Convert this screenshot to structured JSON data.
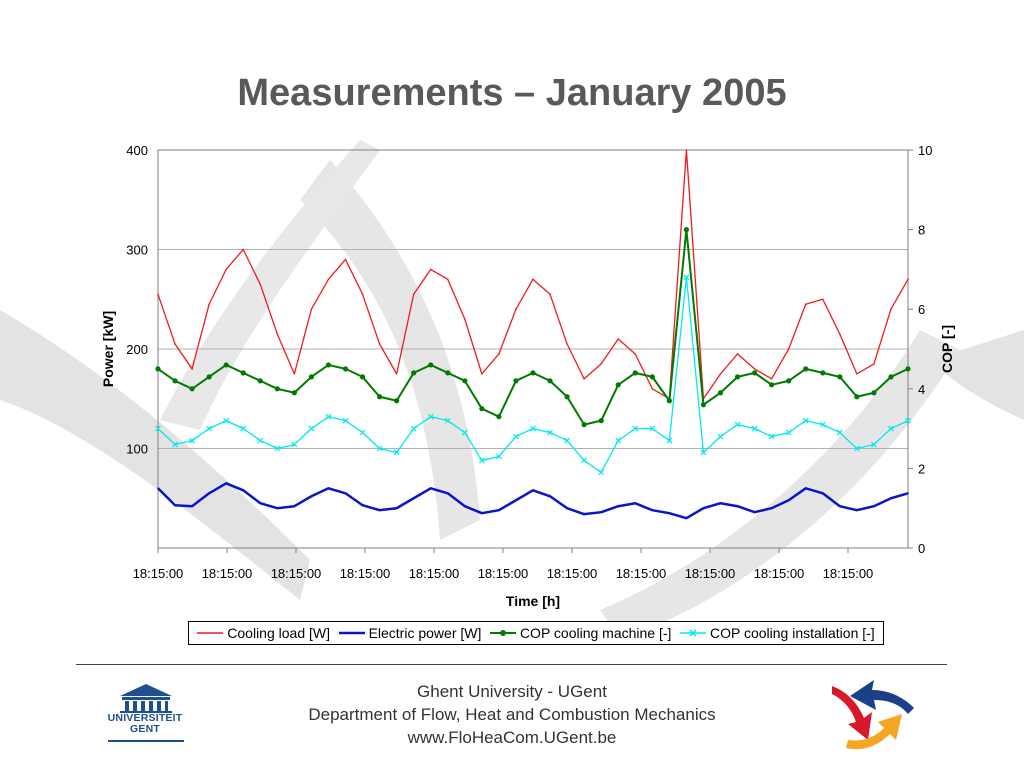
{
  "slide": {
    "title": "Measurements – January 2005",
    "footer": {
      "line1": "Ghent University - UGent",
      "line2": "Department of Flow, Heat and Combustion Mechanics",
      "line3": "www.FloHeaCom.UGent.be"
    },
    "logo_left_text": [
      "UNIVERSITEIT",
      "GENT"
    ]
  },
  "chart_data": {
    "type": "line",
    "xlabel": "Time [h]",
    "ylabel": "Power [kW]",
    "y2label": "COP [-]",
    "ylim": [
      0,
      400
    ],
    "y2lim": [
      0,
      10
    ],
    "yticks": [
      100,
      200,
      300,
      400
    ],
    "y2ticks": [
      0,
      2,
      4,
      6,
      8,
      10
    ],
    "xtick_labels": [
      "18:15:00",
      "18:15:00",
      "18:15:00",
      "18:15:00",
      "18:15:00",
      "18:15:00",
      "18:15:00",
      "18:15:00",
      "18:15:00",
      "18:15:00",
      "18:15:00"
    ],
    "x": [
      0,
      0.25,
      0.5,
      0.75,
      1,
      1.25,
      1.5,
      1.75,
      2,
      2.25,
      2.5,
      2.75,
      3,
      3.25,
      3.5,
      3.75,
      4,
      4.25,
      4.5,
      4.75,
      5,
      5.25,
      5.5,
      5.75,
      6,
      6.25,
      6.5,
      6.75,
      7,
      7.25,
      7.5,
      7.75,
      8,
      8.25,
      8.5,
      8.75,
      9,
      9.25,
      9.5,
      9.75,
      10,
      10.25,
      10.5,
      10.75,
      11
    ],
    "series": [
      {
        "name": "Cooling load [W]",
        "axis": "left",
        "color": "#ee1c1c",
        "marker": "none",
        "values": [
          255,
          205,
          180,
          245,
          280,
          300,
          265,
          215,
          175,
          240,
          270,
          290,
          255,
          205,
          175,
          255,
          280,
          270,
          230,
          175,
          195,
          240,
          270,
          255,
          205,
          170,
          185,
          210,
          195,
          160,
          150,
          400,
          150,
          175,
          195,
          180,
          170,
          200,
          245,
          250,
          215,
          175,
          185,
          240,
          270
        ]
      },
      {
        "name": "Electric power [W]",
        "axis": "left",
        "color": "#0a14c8",
        "marker": "none",
        "values": [
          60,
          43,
          42,
          55,
          65,
          58,
          45,
          40,
          42,
          52,
          60,
          55,
          43,
          38,
          40,
          50,
          60,
          55,
          42,
          35,
          38,
          48,
          58,
          52,
          40,
          34,
          36,
          42,
          45,
          38,
          35,
          30,
          40,
          45,
          42,
          36,
          40,
          48,
          60,
          55,
          42,
          38,
          42,
          50,
          55
        ]
      },
      {
        "name": "COP cooling machine [-]",
        "axis": "right",
        "color": "#007a00",
        "marker": "dot",
        "values": [
          4.5,
          4.2,
          4.0,
          4.3,
          4.6,
          4.4,
          4.2,
          4.0,
          3.9,
          4.3,
          4.6,
          4.5,
          4.3,
          3.8,
          3.7,
          4.4,
          4.6,
          4.4,
          4.2,
          3.5,
          3.3,
          4.2,
          4.4,
          4.2,
          3.8,
          3.1,
          3.2,
          4.1,
          4.4,
          4.3,
          3.7,
          8.0,
          3.6,
          3.9,
          4.3,
          4.4,
          4.1,
          4.2,
          4.5,
          4.4,
          4.3,
          3.8,
          3.9,
          4.3,
          4.5
        ]
      },
      {
        "name": "COP cooling installation [-]",
        "axis": "right",
        "color": "#00e8f0",
        "marker": "x",
        "values": [
          3.0,
          2.6,
          2.7,
          3.0,
          3.2,
          3.0,
          2.7,
          2.5,
          2.6,
          3.0,
          3.3,
          3.2,
          2.9,
          2.5,
          2.4,
          3.0,
          3.3,
          3.2,
          2.9,
          2.2,
          2.3,
          2.8,
          3.0,
          2.9,
          2.7,
          2.2,
          1.9,
          2.7,
          3.0,
          3.0,
          2.7,
          6.8,
          2.4,
          2.8,
          3.1,
          3.0,
          2.8,
          2.9,
          3.2,
          3.1,
          2.9,
          2.5,
          2.6,
          3.0,
          3.2
        ]
      }
    ],
    "legend": "bottom",
    "grid": true,
    "background_colors": {
      "plot": "#ffffff",
      "gridline": "#b0b0b0",
      "swoosh": "#dcdcdc"
    }
  }
}
